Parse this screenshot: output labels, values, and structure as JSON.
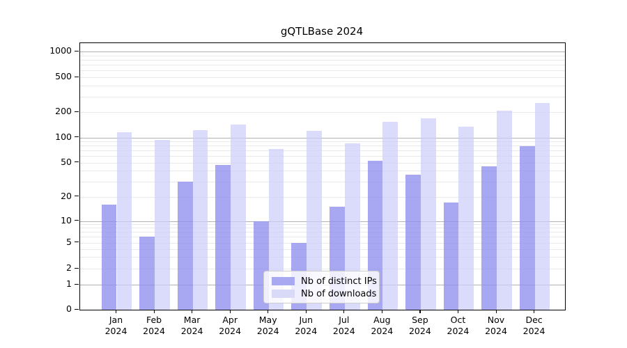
{
  "title": "gQTLBase 2024",
  "chart_data": {
    "type": "bar",
    "title": "gQTLBase 2024",
    "categories": [
      "Jan 2024",
      "Feb 2024",
      "Mar 2024",
      "Apr 2024",
      "May 2024",
      "Jun 2024",
      "Jul 2024",
      "Aug 2024",
      "Sep 2024",
      "Oct 2024",
      "Nov 2024",
      "Dec 2024"
    ],
    "x_tick_labels": [
      [
        "Jan",
        "2024"
      ],
      [
        "Feb",
        "2024"
      ],
      [
        "Mar",
        "2024"
      ],
      [
        "Apr",
        "2024"
      ],
      [
        "May",
        "2024"
      ],
      [
        "Jun",
        "2024"
      ],
      [
        "Jul",
        "2024"
      ],
      [
        "Aug",
        "2024"
      ],
      [
        "Sep",
        "2024"
      ],
      [
        "Oct",
        "2024"
      ],
      [
        "Nov",
        "2024"
      ],
      [
        "Dec",
        "2024"
      ]
    ],
    "series": [
      {
        "name": "Nb of distinct IPs",
        "values": [
          16,
          6,
          30,
          47,
          10,
          5,
          15,
          52,
          36,
          17,
          45,
          78
        ]
      },
      {
        "name": "Nb of downloads",
        "values": [
          115,
          94,
          123,
          143,
          73,
          120,
          85,
          153,
          170,
          135,
          208,
          255
        ]
      }
    ],
    "xlabel": "",
    "ylabel": "",
    "yscale": "symlog",
    "yticks": [
      0,
      1,
      2,
      5,
      10,
      20,
      50,
      100,
      200,
      500,
      1000
    ],
    "ytick_labels": [
      "0",
      "1",
      "2",
      "5",
      "10",
      "20",
      "50",
      "100",
      "200",
      "500",
      "1000"
    ],
    "ylim": [
      0,
      1200
    ],
    "grid": true,
    "legend_position": "lower center"
  },
  "legend": {
    "items": [
      {
        "label": "Nb of distinct IPs",
        "swatch": "#a9a9f1"
      },
      {
        "label": "Nb of downloads",
        "swatch": "#d9d9f8"
      }
    ]
  },
  "colors": {
    "bar_distinct_ips": "rgba(143,143,238,0.78)",
    "bar_downloads": "rgba(205,205,250,0.72)",
    "grid_major": "#b0b0b0",
    "grid_minor": "#e9e9e9",
    "spine": "#000000",
    "legend_border": "#cccccc",
    "legend_bg": "rgba(255,255,255,0.8)",
    "text": "#000000"
  }
}
